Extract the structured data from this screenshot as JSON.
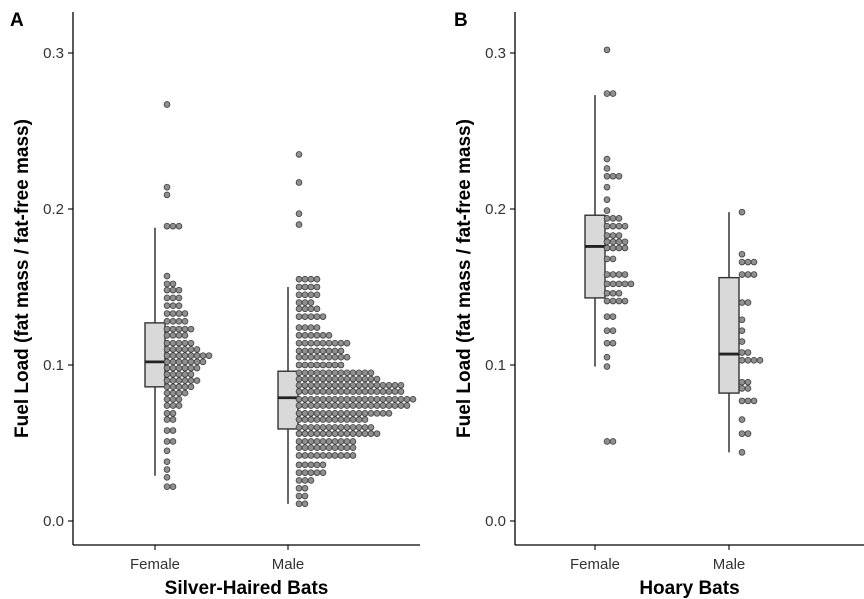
{
  "chart_data": [
    {
      "type": "boxplot-dotplot",
      "panel": "A",
      "xlabel": "Silver-Haired Bats",
      "ylabel": "Fuel Load (fat mass / fat-free mass)",
      "ylim": [
        0,
        0.32
      ],
      "yticks": [
        "0.0",
        "0.1",
        "0.2",
        "0.3"
      ],
      "categories": [
        "Female",
        "Male"
      ],
      "box": [
        {
          "min": 0.029,
          "q1": 0.086,
          "median": 0.102,
          "q3": 0.127,
          "max": 0.188
        },
        {
          "min": 0.011,
          "q1": 0.059,
          "median": 0.079,
          "q3": 0.096,
          "max": 0.15
        }
      ],
      "dots": [
        [
          {
            "y": 0.267,
            "n": 1
          },
          {
            "y": 0.214,
            "n": 1
          },
          {
            "y": 0.209,
            "n": 1
          },
          {
            "y": 0.189,
            "n": 3
          },
          {
            "y": 0.157,
            "n": 1
          },
          {
            "y": 0.152,
            "n": 2
          },
          {
            "y": 0.148,
            "n": 3
          },
          {
            "y": 0.143,
            "n": 3
          },
          {
            "y": 0.138,
            "n": 3
          },
          {
            "y": 0.133,
            "n": 4
          },
          {
            "y": 0.128,
            "n": 4
          },
          {
            "y": 0.123,
            "n": 5
          },
          {
            "y": 0.119,
            "n": 4
          },
          {
            "y": 0.114,
            "n": 5
          },
          {
            "y": 0.11,
            "n": 6
          },
          {
            "y": 0.106,
            "n": 8
          },
          {
            "y": 0.102,
            "n": 7
          },
          {
            "y": 0.098,
            "n": 6
          },
          {
            "y": 0.094,
            "n": 5
          },
          {
            "y": 0.09,
            "n": 6
          },
          {
            "y": 0.086,
            "n": 5
          },
          {
            "y": 0.082,
            "n": 4
          },
          {
            "y": 0.078,
            "n": 3
          },
          {
            "y": 0.074,
            "n": 3
          },
          {
            "y": 0.069,
            "n": 2
          },
          {
            "y": 0.065,
            "n": 2
          },
          {
            "y": 0.058,
            "n": 2
          },
          {
            "y": 0.051,
            "n": 2
          },
          {
            "y": 0.045,
            "n": 1
          },
          {
            "y": 0.038,
            "n": 1
          },
          {
            "y": 0.033,
            "n": 1
          },
          {
            "y": 0.028,
            "n": 1
          },
          {
            "y": 0.022,
            "n": 2
          }
        ],
        [
          {
            "y": 0.235,
            "n": 1
          },
          {
            "y": 0.217,
            "n": 1
          },
          {
            "y": 0.197,
            "n": 1
          },
          {
            "y": 0.19,
            "n": 1
          },
          {
            "y": 0.155,
            "n": 4
          },
          {
            "y": 0.15,
            "n": 4
          },
          {
            "y": 0.145,
            "n": 4
          },
          {
            "y": 0.14,
            "n": 3
          },
          {
            "y": 0.136,
            "n": 4
          },
          {
            "y": 0.131,
            "n": 5
          },
          {
            "y": 0.124,
            "n": 4
          },
          {
            "y": 0.119,
            "n": 6
          },
          {
            "y": 0.114,
            "n": 9
          },
          {
            "y": 0.109,
            "n": 8
          },
          {
            "y": 0.105,
            "n": 9
          },
          {
            "y": 0.1,
            "n": 8
          },
          {
            "y": 0.095,
            "n": 13
          },
          {
            "y": 0.091,
            "n": 14
          },
          {
            "y": 0.087,
            "n": 18
          },
          {
            "y": 0.083,
            "n": 18
          },
          {
            "y": 0.078,
            "n": 20
          },
          {
            "y": 0.074,
            "n": 19
          },
          {
            "y": 0.069,
            "n": 16
          },
          {
            "y": 0.065,
            "n": 12
          },
          {
            "y": 0.06,
            "n": 13
          },
          {
            "y": 0.056,
            "n": 14
          },
          {
            "y": 0.051,
            "n": 10
          },
          {
            "y": 0.047,
            "n": 10
          },
          {
            "y": 0.042,
            "n": 10
          },
          {
            "y": 0.036,
            "n": 5
          },
          {
            "y": 0.031,
            "n": 5
          },
          {
            "y": 0.026,
            "n": 3
          },
          {
            "y": 0.021,
            "n": 2
          },
          {
            "y": 0.016,
            "n": 2
          },
          {
            "y": 0.011,
            "n": 2
          }
        ]
      ]
    },
    {
      "type": "boxplot-dotplot",
      "panel": "B",
      "xlabel": "Hoary Bats",
      "ylabel": "Fuel Load (fat mass / fat-free mass)",
      "ylim": [
        0,
        0.32
      ],
      "yticks": [
        "0.0",
        "0.1",
        "0.2",
        "0.3"
      ],
      "categories": [
        "Female",
        "Male"
      ],
      "box": [
        {
          "min": 0.099,
          "q1": 0.143,
          "median": 0.176,
          "q3": 0.196,
          "max": 0.273
        },
        {
          "min": 0.044,
          "q1": 0.082,
          "median": 0.107,
          "q3": 0.156,
          "max": 0.198
        }
      ],
      "dots": [
        [
          {
            "y": 0.302,
            "n": 1
          },
          {
            "y": 0.274,
            "n": 2
          },
          {
            "y": 0.232,
            "n": 1
          },
          {
            "y": 0.226,
            "n": 1
          },
          {
            "y": 0.221,
            "n": 3
          },
          {
            "y": 0.214,
            "n": 1
          },
          {
            "y": 0.206,
            "n": 1
          },
          {
            "y": 0.199,
            "n": 1
          },
          {
            "y": 0.194,
            "n": 3
          },
          {
            "y": 0.189,
            "n": 4
          },
          {
            "y": 0.183,
            "n": 3
          },
          {
            "y": 0.179,
            "n": 4
          },
          {
            "y": 0.175,
            "n": 4
          },
          {
            "y": 0.168,
            "n": 2
          },
          {
            "y": 0.158,
            "n": 4
          },
          {
            "y": 0.152,
            "n": 5
          },
          {
            "y": 0.146,
            "n": 3
          },
          {
            "y": 0.141,
            "n": 4
          },
          {
            "y": 0.131,
            "n": 2
          },
          {
            "y": 0.122,
            "n": 2
          },
          {
            "y": 0.114,
            "n": 2
          },
          {
            "y": 0.105,
            "n": 1
          },
          {
            "y": 0.099,
            "n": 1
          },
          {
            "y": 0.051,
            "n": 2
          }
        ],
        [
          {
            "y": 0.198,
            "n": 1
          },
          {
            "y": 0.171,
            "n": 1
          },
          {
            "y": 0.166,
            "n": 3
          },
          {
            "y": 0.158,
            "n": 3
          },
          {
            "y": 0.14,
            "n": 2
          },
          {
            "y": 0.129,
            "n": 1
          },
          {
            "y": 0.122,
            "n": 1
          },
          {
            "y": 0.115,
            "n": 1
          },
          {
            "y": 0.108,
            "n": 2
          },
          {
            "y": 0.103,
            "n": 4
          },
          {
            "y": 0.089,
            "n": 2
          },
          {
            "y": 0.085,
            "n": 2
          },
          {
            "y": 0.077,
            "n": 3
          },
          {
            "y": 0.065,
            "n": 1
          },
          {
            "y": 0.056,
            "n": 2
          },
          {
            "y": 0.044,
            "n": 1
          }
        ]
      ]
    }
  ],
  "colors": {
    "box_fill": "#d9d9d9",
    "box_stroke": "#333333",
    "dot_fill": "#8f8f8f",
    "dot_stroke": "#3d3d3d"
  }
}
